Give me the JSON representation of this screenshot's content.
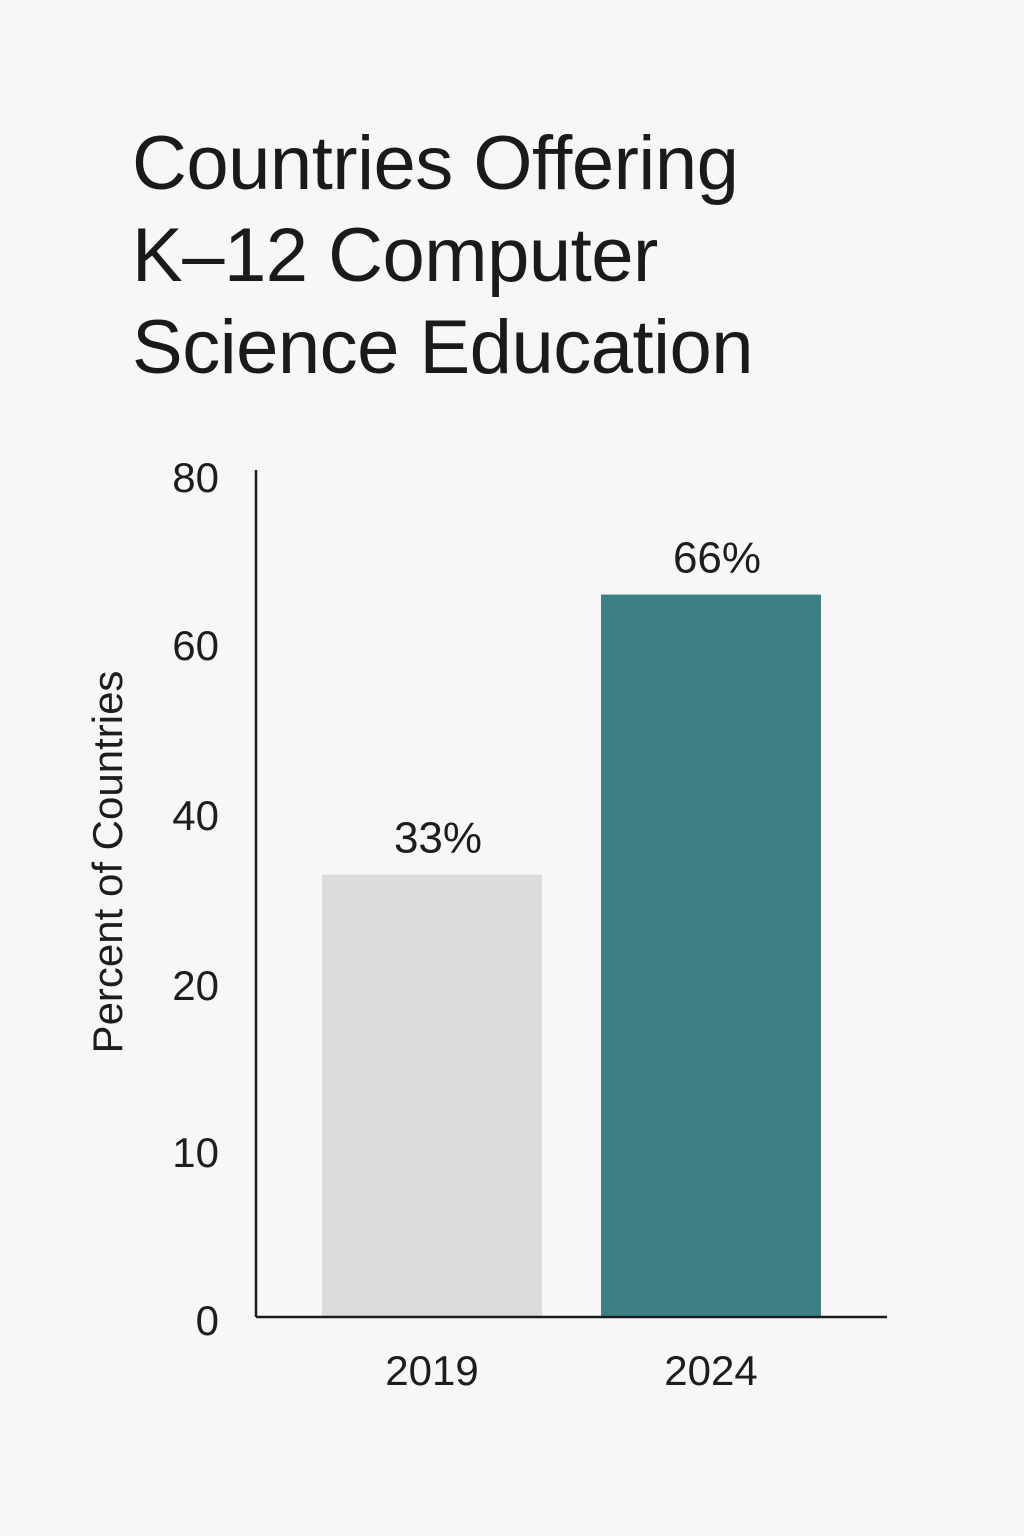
{
  "chart_data": {
    "type": "bar",
    "title_lines": [
      "Countries Offering",
      "K–12 Computer",
      "Science Education"
    ],
    "title": "Countries Offering K–12 Computer Science Education",
    "xlabel": "",
    "ylabel": "Percent of Countries",
    "categories": [
      "2019",
      "2024"
    ],
    "values": [
      33,
      66
    ],
    "data_labels": [
      "33%",
      "66%"
    ],
    "bar_colors": [
      "#dcdcdc",
      "#3c7f84"
    ],
    "y_ticks": [
      "0",
      "10",
      "20",
      "40",
      "60",
      "80"
    ],
    "ylim": [
      0,
      80
    ],
    "grid": false,
    "legend": "none"
  },
  "colors": {
    "background": "#f7f7f7",
    "text": "#1d1d1d",
    "axis": "#1d1d1d"
  }
}
